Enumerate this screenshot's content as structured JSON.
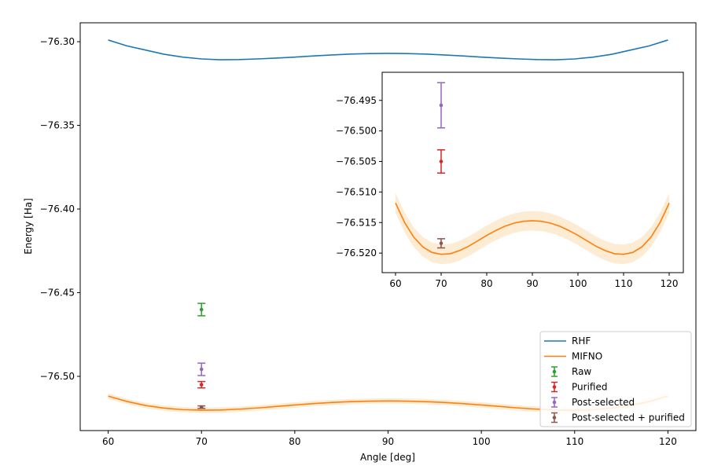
{
  "chart_data": [
    {
      "type": "line",
      "panel": "main",
      "xlabel": "Angle [deg]",
      "ylabel": "Energy [Ha]",
      "xlim": [
        57,
        123
      ],
      "ylim": [
        -76.5324,
        -76.2887
      ],
      "xticks": [
        60,
        70,
        80,
        90,
        100,
        110,
        120
      ],
      "yticks": [
        -76.3,
        -76.35,
        -76.4,
        -76.45,
        -76.5
      ],
      "grid": false,
      "legend_position": "lower-right",
      "x": [
        60,
        62,
        64,
        66,
        68,
        70,
        72,
        74,
        76,
        78,
        80,
        82,
        84,
        86,
        88,
        90,
        92,
        94,
        96,
        98,
        100,
        102,
        104,
        106,
        108,
        110,
        112,
        114,
        116,
        118,
        120
      ],
      "series": [
        {
          "name": "RHF",
          "kind": "line",
          "color": "#1f77b4",
          "values": [
            -76.299,
            -76.3025,
            -76.305,
            -76.3075,
            -76.3092,
            -76.3103,
            -76.3108,
            -76.3107,
            -76.3103,
            -76.3098,
            -76.3092,
            -76.3085,
            -76.3079,
            -76.3074,
            -76.3071,
            -76.307,
            -76.3071,
            -76.3074,
            -76.3079,
            -76.3085,
            -76.3092,
            -76.3098,
            -76.3103,
            -76.3107,
            -76.3108,
            -76.3103,
            -76.3092,
            -76.3075,
            -76.305,
            -76.3025,
            -76.299
          ]
        },
        {
          "name": "MIFNO",
          "kind": "line",
          "color": "#ff7f0e",
          "band_halfwidth": 0.0016,
          "band_color": "#fbe0b8",
          "values": [
            -76.5118,
            -76.515,
            -76.5174,
            -76.519,
            -76.5199,
            -76.5202,
            -76.5201,
            -76.5196,
            -76.5189,
            -76.518,
            -76.5171,
            -76.5163,
            -76.5156,
            -76.5151,
            -76.5148,
            -76.5147,
            -76.5148,
            -76.5151,
            -76.5156,
            -76.5163,
            -76.5171,
            -76.518,
            -76.5189,
            -76.5196,
            -76.5201,
            -76.5202,
            -76.5199,
            -76.519,
            -76.5174,
            -76.515,
            -76.5118
          ]
        },
        {
          "name": "Raw",
          "kind": "errorbar",
          "color": "#2ca02c",
          "x": 70,
          "y": -76.4601,
          "err": 0.0037
        },
        {
          "name": "Purified",
          "kind": "errorbar",
          "color": "#d62728",
          "x": 70,
          "y": -76.505,
          "err": 0.0019
        },
        {
          "name": "Post-selected",
          "kind": "errorbar",
          "color": "#9467bd",
          "x": 70,
          "y": -76.4958,
          "err": 0.0037
        },
        {
          "name": "Post-selected + purified",
          "kind": "errorbar",
          "color": "#8c564b",
          "x": 70,
          "y": -76.5184,
          "err": 0.00075
        }
      ]
    },
    {
      "type": "line",
      "panel": "inset",
      "xlim": [
        57.07,
        123.1
      ],
      "ylim": [
        -76.5232,
        -76.4904
      ],
      "xticks": [
        60,
        70,
        80,
        90,
        100,
        110,
        120
      ],
      "yticks": [
        -76.495,
        -76.5,
        -76.505,
        -76.51,
        -76.515,
        -76.52
      ],
      "grid": false,
      "shows_series": [
        "MIFNO",
        "Purified",
        "Post-selected",
        "Post-selected + purified"
      ]
    }
  ]
}
